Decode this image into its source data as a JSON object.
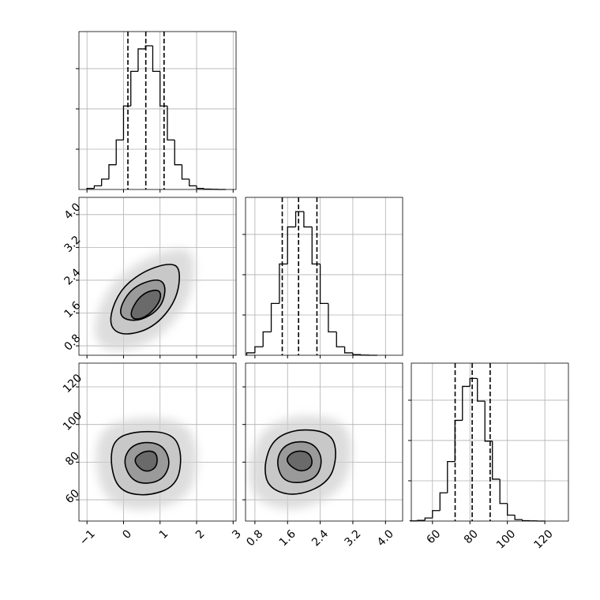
{
  "chart_data": {
    "type": "corner",
    "color": "#000000",
    "grid": true,
    "hist_ylim": [
      0,
      1176
    ],
    "hist_yticks": [
      300,
      600,
      900
    ],
    "params": [
      {
        "lim": [
          -1.22,
          3.08
        ],
        "ticks": [
          {
            "value": -1,
            "label": "−1"
          },
          0,
          1,
          2,
          3
        ],
        "bins": [
          -1.0,
          -0.8,
          -0.6,
          -0.4,
          -0.2,
          0.0,
          0.2,
          0.4,
          0.6,
          0.8,
          1.0,
          1.2,
          1.4,
          1.6,
          1.8,
          2.0,
          2.2,
          2.4,
          2.6,
          2.8
        ],
        "counts": [
          8,
          27,
          77,
          184,
          369,
          622,
          880,
          1047,
          1070,
          880,
          622,
          369,
          184,
          77,
          27,
          8,
          3,
          1,
          0
        ],
        "quantiles": [
          0.12,
          0.61,
          1.11
        ]
      },
      {
        "lim": [
          0.57,
          4.42
        ],
        "ticks": [
          0.8,
          1.6,
          2.4,
          3.2,
          {
            "value": 4,
            "label": "4.0"
          }
        ],
        "bins": [
          0.6,
          0.8,
          1.0,
          1.2,
          1.4,
          1.6,
          1.8,
          2.0,
          2.2,
          2.4,
          2.6,
          2.8,
          3.0,
          3.2,
          3.4,
          3.6,
          3.8
        ],
        "counts": [
          18,
          63,
          174,
          386,
          680,
          956,
          1070,
          956,
          680,
          386,
          174,
          63,
          18,
          5,
          1,
          0
        ],
        "quantiles": [
          1.47,
          1.87,
          2.32
        ]
      },
      {
        "lim": [
          48.7,
          132.6
        ],
        "ticks": [
          60,
          80,
          100,
          120
        ],
        "bins": [
          48,
          52,
          56,
          60,
          64,
          68,
          72,
          76,
          80,
          84,
          88,
          92,
          96,
          100,
          104,
          108,
          112,
          116,
          120
        ],
        "counts": [
          1,
          5,
          23,
          78,
          210,
          443,
          750,
          1003,
          1062,
          893,
          595,
          312,
          131,
          44,
          11,
          3,
          1,
          0
        ],
        "quantiles": [
          72.1,
          81.2,
          90.8
        ]
      }
    ],
    "pairs": [
      {
        "x": 0,
        "y": 1,
        "contours": [
          {
            "x": [
              -0.43,
              -0.15,
              0.49,
              1.25,
              1.57,
              1.46,
              0.82,
              -0.04
            ],
            "y": [
              1.33,
              2.11,
              2.6,
              2.83,
              2.69,
              1.91,
              1.23,
              1.03
            ]
          },
          {
            "x": [
              -0.19,
              0.17,
              0.92,
              1.18,
              1.03,
              0.39
            ],
            "y": [
              1.52,
              2.2,
              2.46,
              2.26,
              1.71,
              1.37
            ]
          },
          {
            "x": [
              0.17,
              0.49,
              0.99,
              1.03,
              0.67,
              0.28
            ],
            "y": [
              1.62,
              2.07,
              2.2,
              1.91,
              1.52,
              1.42
            ]
          }
        ]
      },
      {
        "x": 0,
        "y": 2,
        "contours": [
          {
            "x": [
              -0.37,
              -0.26,
              0.39,
              1.35,
              1.61,
              1.46,
              0.6,
              -0.15
            ],
            "y": [
              79.8,
              92.5,
              96.7,
              95.5,
              84.1,
              67.1,
              61.6,
              65.0
            ]
          },
          {
            "x": [
              -0.04,
              0.28,
              1.03,
              1.31,
              1.03,
              0.28
            ],
            "y": [
              80.7,
              90.4,
              90.4,
              79.8,
              69.3,
              68.4
            ]
          },
          {
            "x": [
              0.24,
              0.56,
              0.92,
              0.92,
              0.56
            ],
            "y": [
              81.1,
              86.2,
              85.4,
              76.9,
              74.3
            ]
          }
        ]
      },
      {
        "x": 1,
        "y": 2,
        "contours": [
          {
            "x": [
              1.01,
              1.24,
              1.9,
              2.67,
              2.82,
              2.63,
              1.81,
              1.14
            ],
            "y": [
              77.7,
              92.5,
              98.0,
              95.5,
              84.1,
              69.3,
              61.6,
              65.9
            ]
          },
          {
            "x": [
              1.3,
              1.56,
              2.19,
              2.48,
              2.29,
              1.52
            ],
            "y": [
              80.7,
              90.4,
              91.2,
              82.0,
              70.1,
              68.4
            ]
          },
          {
            "x": [
              1.52,
              1.75,
              2.15,
              2.23,
              1.9
            ],
            "y": [
              80.7,
              86.2,
              85.4,
              77.7,
              74.3
            ]
          }
        ]
      }
    ]
  }
}
